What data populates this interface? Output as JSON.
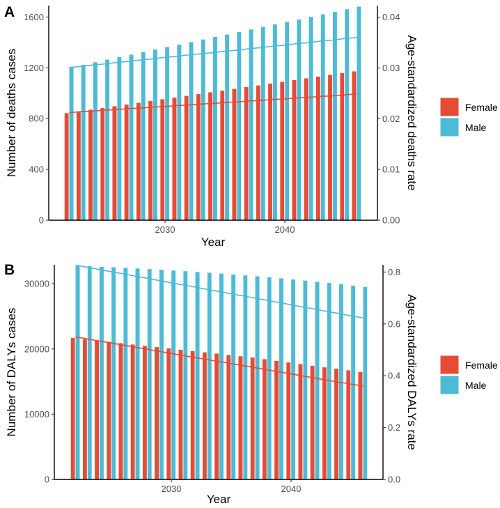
{
  "chart_data": [
    {
      "type": "bar",
      "panel_label": "A",
      "xlabel": "Year",
      "ylabel": "Number of deaths cases",
      "y2label": "Age-standardized deaths rate",
      "x": [
        2022,
        2023,
        2024,
        2025,
        2026,
        2027,
        2028,
        2029,
        2030,
        2031,
        2032,
        2033,
        2034,
        2035,
        2036,
        2037,
        2038,
        2039,
        2040,
        2041,
        2042,
        2043,
        2044,
        2045,
        2046
      ],
      "x_ticks": [
        2030,
        2040
      ],
      "ylim": [
        0,
        1690
      ],
      "y_ticks": [
        0,
        400,
        800,
        1200,
        1600
      ],
      "y2lim": [
        0,
        0.0423
      ],
      "y2_ticks": [
        "0.00",
        "0.01",
        "0.02",
        "0.03",
        "0.04"
      ],
      "y2_tick_values": [
        0,
        0.01,
        0.02,
        0.03,
        0.04
      ],
      "series": [
        {
          "name": "Female",
          "kind": "bar",
          "axis": "left",
          "color": "#E64B35",
          "values": [
            844,
            857,
            871,
            884,
            898,
            912,
            925,
            939,
            953,
            966,
            980,
            994,
            1008,
            1021,
            1035,
            1049,
            1062,
            1076,
            1090,
            1104,
            1118,
            1132,
            1145,
            1159,
            1173
          ]
        },
        {
          "name": "Male",
          "kind": "bar",
          "axis": "left",
          "color": "#4DBBD5",
          "values": [
            1205,
            1225,
            1245,
            1265,
            1285,
            1305,
            1325,
            1345,
            1364,
            1384,
            1404,
            1424,
            1444,
            1463,
            1483,
            1503,
            1523,
            1543,
            1563,
            1582,
            1602,
            1622,
            1642,
            1662,
            1682
          ]
        },
        {
          "name": "Female",
          "kind": "line",
          "axis": "right",
          "color": "#E64B35",
          "values": [
            0.0212,
            0.0214,
            0.0215,
            0.0217,
            0.0218,
            0.022,
            0.0221,
            0.0223,
            0.0224,
            0.0226,
            0.0227,
            0.0229,
            0.023,
            0.0232,
            0.0233,
            0.0235,
            0.0236,
            0.0238,
            0.0239,
            0.0241,
            0.0242,
            0.0244,
            0.0245,
            0.0247,
            0.0249
          ]
        },
        {
          "name": "Male",
          "kind": "line",
          "axis": "right",
          "color": "#4DBBD5",
          "values": [
            0.0301,
            0.0303,
            0.0306,
            0.0308,
            0.0311,
            0.0313,
            0.0316,
            0.0318,
            0.0321,
            0.0323,
            0.0326,
            0.0328,
            0.033,
            0.0333,
            0.0335,
            0.0338,
            0.034,
            0.0343,
            0.0345,
            0.0348,
            0.035,
            0.0353,
            0.0355,
            0.0358,
            0.036
          ]
        }
      ],
      "legend": [
        "Female",
        "Male"
      ],
      "legend_position": "right",
      "grid": false
    },
    {
      "type": "bar",
      "panel_label": "B",
      "xlabel": "Year",
      "ylabel": "Number of DALYs cases",
      "y2label": "Age-standardized DALYs rate",
      "x": [
        2022,
        2023,
        2024,
        2025,
        2026,
        2027,
        2028,
        2029,
        2030,
        2031,
        2032,
        2033,
        2034,
        2035,
        2036,
        2037,
        2038,
        2039,
        2040,
        2041,
        2042,
        2043,
        2044,
        2045,
        2046
      ],
      "x_ticks": [
        2030,
        2040
      ],
      "ylim": [
        0,
        32900
      ],
      "y_ticks": [
        0,
        10000,
        20000,
        30000
      ],
      "y2lim": [
        0,
        0.828
      ],
      "y2_ticks": [
        "0.0",
        "0.2",
        "0.4",
        "0.6",
        "0.8"
      ],
      "y2_tick_values": [
        0,
        0.2,
        0.4,
        0.6,
        0.8
      ],
      "series": [
        {
          "name": "Female",
          "kind": "bar",
          "axis": "left",
          "color": "#E64B35",
          "values": [
            21700,
            21500,
            21300,
            21100,
            20900,
            20700,
            20500,
            20300,
            20100,
            19900,
            19700,
            19500,
            19300,
            19100,
            18900,
            18700,
            18450,
            18200,
            17950,
            17700,
            17450,
            17200,
            17000,
            16750,
            16500
          ]
        },
        {
          "name": "Male",
          "kind": "bar",
          "axis": "left",
          "color": "#4DBBD5",
          "values": [
            32770,
            32700,
            32620,
            32540,
            32450,
            32360,
            32260,
            32160,
            32050,
            31940,
            31820,
            31700,
            31570,
            31440,
            31300,
            31150,
            31000,
            30840,
            30670,
            30500,
            30320,
            30130,
            29930,
            29720,
            29500
          ]
        },
        {
          "name": "Female",
          "kind": "line",
          "axis": "right",
          "color": "#E64B35",
          "values": [
            0.55,
            0.542,
            0.534,
            0.526,
            0.518,
            0.51,
            0.502,
            0.494,
            0.486,
            0.478,
            0.47,
            0.462,
            0.455,
            0.447,
            0.439,
            0.431,
            0.423,
            0.415,
            0.407,
            0.399,
            0.391,
            0.383,
            0.375,
            0.368,
            0.36
          ]
        },
        {
          "name": "Male",
          "kind": "line",
          "axis": "right",
          "color": "#4DBBD5",
          "values": [
            0.827,
            0.818,
            0.81,
            0.801,
            0.793,
            0.784,
            0.776,
            0.767,
            0.759,
            0.75,
            0.742,
            0.733,
            0.725,
            0.716,
            0.708,
            0.699,
            0.691,
            0.682,
            0.674,
            0.665,
            0.657,
            0.648,
            0.64,
            0.631,
            0.623
          ]
        }
      ],
      "legend": [
        "Female",
        "Male"
      ],
      "legend_position": "right",
      "grid": false
    }
  ]
}
